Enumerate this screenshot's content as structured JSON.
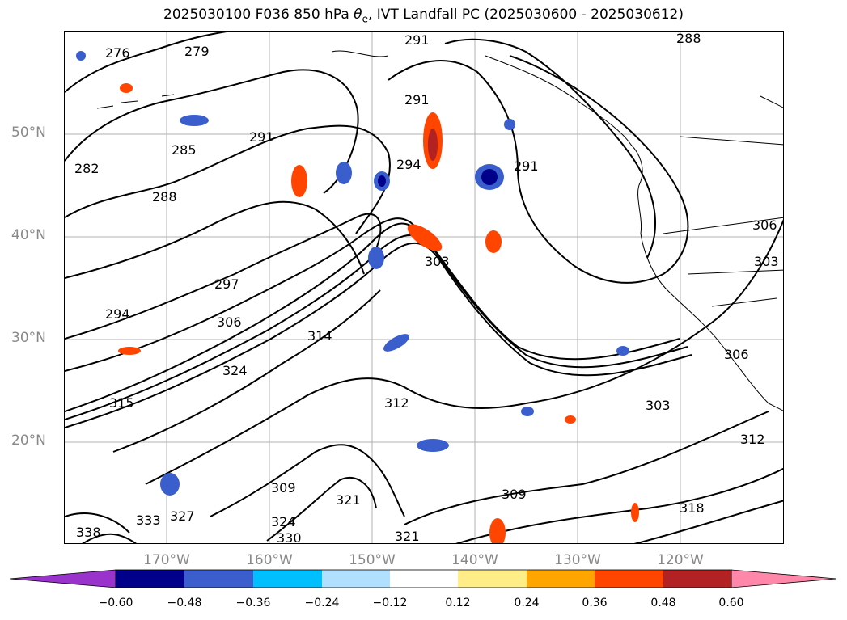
{
  "title": "2025030100 F036 850 hPa θe, IVT Landfall PC (2025030600 - 2025030612)",
  "title_parts": {
    "prefix": "2025030100 F036 850 hPa ",
    "theta": "θ",
    "sub": "e",
    "suffix": ", IVT Landfall PC (2025030600 - 2025030612)"
  },
  "map": {
    "lat_labels": [
      "50°N",
      "40°N",
      "30°N",
      "20°N"
    ],
    "lon_labels": [
      "170°W",
      "160°W",
      "150°W",
      "140°W",
      "130°W",
      "120°W"
    ],
    "contour_labels": [
      "276",
      "279",
      "291",
      "288",
      "282",
      "285",
      "291",
      "288",
      "294",
      "291",
      "291",
      "297",
      "294",
      "306",
      "303",
      "306",
      "314",
      "324",
      "315",
      "312",
      "303",
      "309",
      "321",
      "309",
      "324",
      "330",
      "321",
      "327",
      "333",
      "338",
      "318",
      "312",
      "306",
      "303"
    ]
  },
  "colorbar": {
    "ticks": [
      "−0.60",
      "−0.48",
      "−0.36",
      "−0.24",
      "−0.12",
      "0.12",
      "0.24",
      "0.36",
      "0.48",
      "0.60"
    ],
    "colors": [
      "#9933cc",
      "#00008b",
      "#3a5fcd",
      "#00bfff",
      "#b0e0ff",
      "#ffffff",
      "#ffee88",
      "#ffa500",
      "#ff4500",
      "#b22222",
      "#ff88aa",
      "#ff88aa"
    ]
  }
}
